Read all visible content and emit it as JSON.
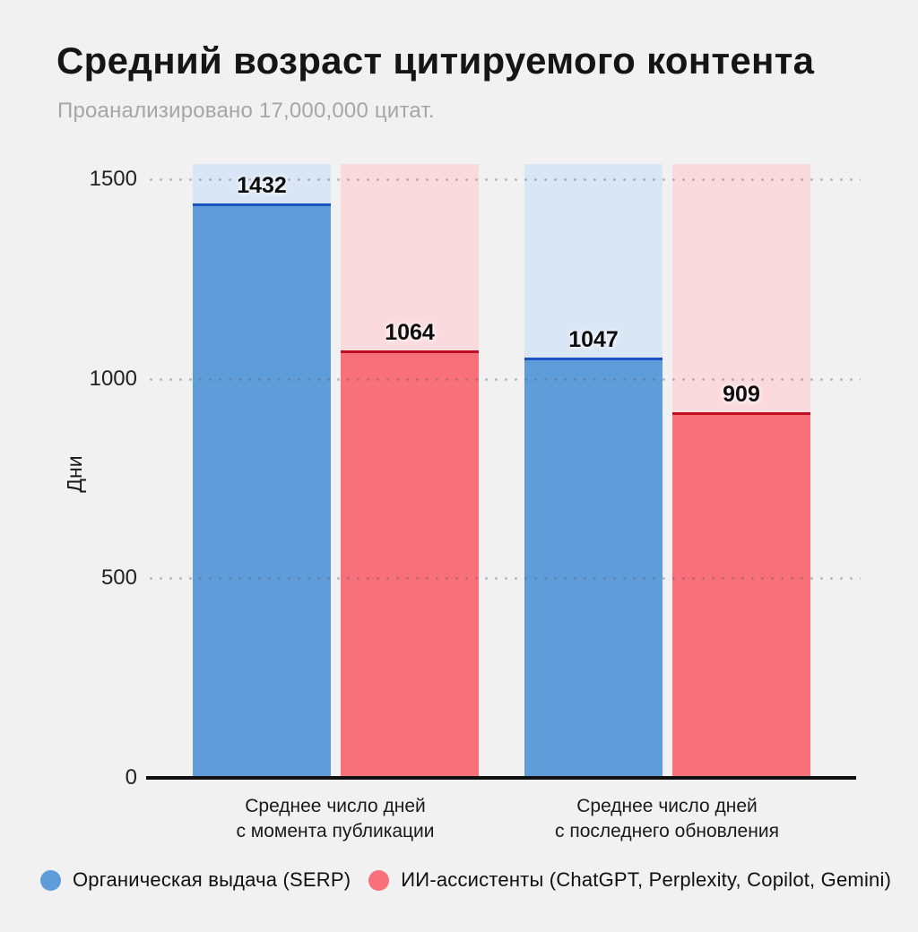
{
  "header": {
    "title": "Средний возраст цитируемого контента",
    "subtitle": "Проанализировано 17,000,000 цитат."
  },
  "chart_data": {
    "type": "bar",
    "title": "Средний возраст цитируемого контента",
    "subtitle": "Проанализировано 17,000,000 цитат.",
    "ylabel": "Дни",
    "xlabel": "",
    "ylim": [
      0,
      1500
    ],
    "yticks": [
      0,
      500,
      1000,
      1500
    ],
    "grid": "dotted-horizontal",
    "legend_position": "bottom",
    "background_color": "#f1f1f1",
    "axis_color": "#101010",
    "categories": [
      "Среднее число дней с момента публикации",
      "Среднее число дней с последнего обновления"
    ],
    "categories_lines": [
      [
        "Среднее число дней",
        "с момента публикации"
      ],
      [
        "Среднее число дней",
        "с последнего обновления"
      ]
    ],
    "series": [
      {
        "name": "Органическая выдача (SERP)",
        "values": [
          1432,
          1047
        ],
        "color": "#5f9cda",
        "color_light": "#d8e6f5",
        "color_line": "#1c52c2"
      },
      {
        "name": "ИИ-ассистенты (ChatGPT, Perplexity, Copilot, Gemini)",
        "values": [
          1064,
          909
        ],
        "color": "#f8717a",
        "color_light": "#fbdade",
        "color_line": "#bf0e20"
      }
    ],
    "value_labels": [
      [
        1432,
        1047
      ],
      [
        1064,
        909
      ]
    ],
    "track_full_height": true
  }
}
